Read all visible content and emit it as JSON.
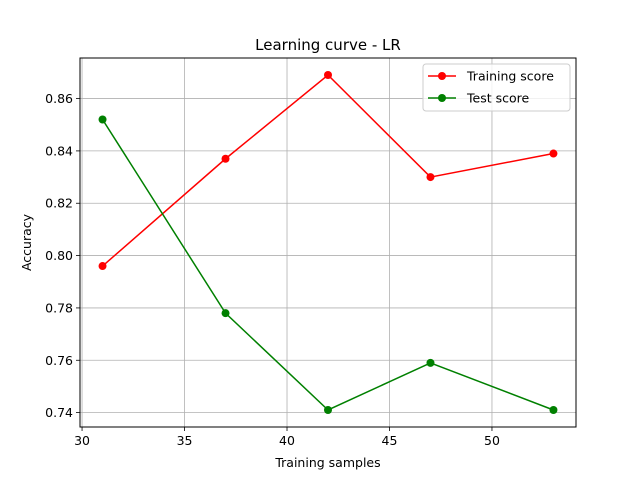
{
  "chart_data": {
    "type": "line",
    "title": "Learning curve - LR",
    "xlabel": "Training samples",
    "ylabel": "Accuracy",
    "xlim": [
      29.9,
      54.1
    ],
    "ylim": [
      0.7345,
      0.8755
    ],
    "xticks": [
      30,
      35,
      40,
      45,
      50
    ],
    "yticks": [
      0.74,
      0.76,
      0.78,
      0.8,
      0.82,
      0.84,
      0.86
    ],
    "ytick_labels": [
      "0.74",
      "0.76",
      "0.78",
      "0.80",
      "0.82",
      "0.84",
      "0.86"
    ],
    "grid": true,
    "legend_position": "top-right",
    "series": [
      {
        "name": "Training score",
        "color": "#ff0000",
        "x": [
          31,
          37,
          42,
          47,
          53
        ],
        "y": [
          0.796,
          0.837,
          0.869,
          0.83,
          0.839
        ]
      },
      {
        "name": "Test score",
        "color": "#008000",
        "x": [
          31,
          37,
          42,
          47,
          53
        ],
        "y": [
          0.852,
          0.778,
          0.741,
          0.759,
          0.741
        ]
      }
    ]
  }
}
